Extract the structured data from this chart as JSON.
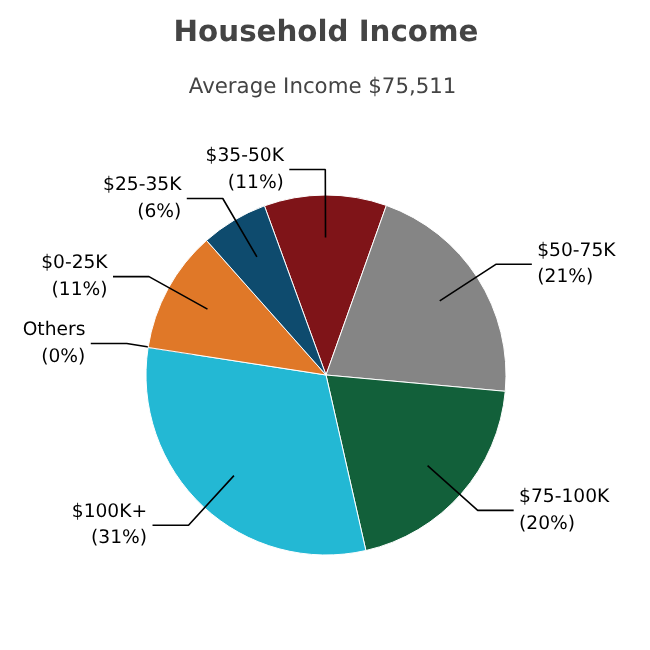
{
  "chart_data": {
    "type": "pie",
    "title": "Household Income",
    "subtitle": "Average Income  $75,511",
    "categories": [
      "$35-50K",
      "$50-75K",
      "$75-100K",
      "$100K+",
      "Others",
      "$0-25K",
      "$25-35K"
    ],
    "values": [
      11,
      21,
      20,
      31,
      0,
      11,
      6
    ],
    "value_labels": [
      "(11%)",
      "(21%)",
      "(20%)",
      "(31%)",
      "(0%)",
      "(11%)",
      "(6%)"
    ],
    "colors": [
      "#7f1418",
      "#858585",
      "#12603a",
      "#23b8d4",
      "#bbbbbb",
      "#e07828",
      "#0e4b6e"
    ]
  }
}
